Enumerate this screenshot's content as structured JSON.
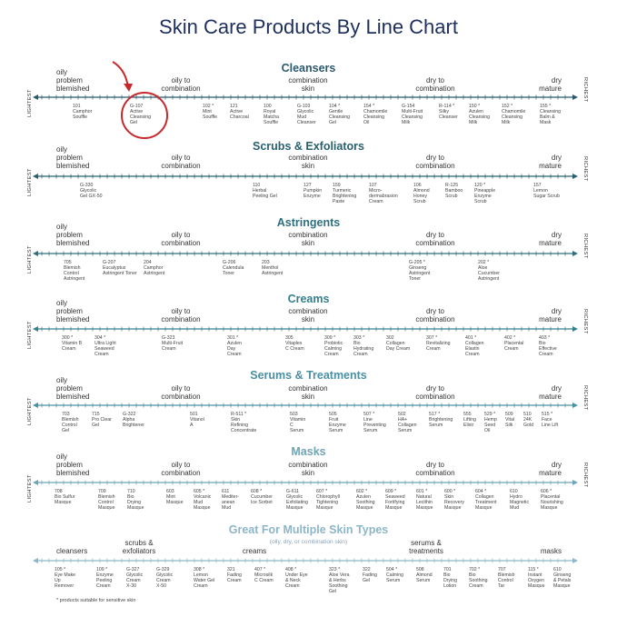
{
  "title": "Skin Care Products By Line Chart",
  "axis_ends": {
    "left": "LIGHTEST",
    "right": "RICHEST"
  },
  "skin_types": {
    "oily": "oily\nproblem\nblemished",
    "oily_combo": "oily to\ncombination",
    "combo": "combination\nskin",
    "dry_combo": "dry to\ncombination",
    "dry": "dry\nmature"
  },
  "colors": {
    "title": "#1d2f5c",
    "cleansers": "#2b5a6e",
    "scrubs": "#27606f",
    "astringents": "#2e6f7d",
    "creams": "#357f8c",
    "serums": "#4a90a3",
    "masks": "#6ea4b8",
    "multi": "#8db6c9",
    "highlight": "#c6292b"
  },
  "sections": [
    {
      "key": "cleansers",
      "title": "Cleansers",
      "color": "#2b5a6e",
      "products": [
        "101\nCamphor\nSouffle",
        "G-107\nActive\nCleansing\nGel",
        "102 *\nMint\nSouffle",
        "121\nActive\nCharcoal",
        "100\nRoyal\nMatcha\nSouffle",
        "G-103\nGlycolic\nMud\nCleanser",
        "104 *\nGentle\nCleansing\nGel",
        "154 *\nChamomile\nCleansing\nOil",
        "G-154\nMulti-Fruit\nCleansing\nMilk",
        "R-114 *\nSilky\nCleanser",
        "150 *\nAzulen\nCleansing\nMilk",
        "152 *\nChamomile\nCleansing\nMilk",
        "155 *\nCleansing\nBalm &\nMask"
      ]
    },
    {
      "key": "scrubs",
      "title": "Scrubs & Exfoliators",
      "color": "#27606f",
      "products": [
        "G-330\nGlycolic\nGel GX-50",
        "110\nHerbal\nPeeling Gel",
        "127\nPumpkin\nEnzyme",
        "159\nTurmeric\nBrightening\nPaste",
        "107\nMicro-\ndermabrasion\nCream",
        "106\nAlmond\nHoney\nScrub",
        "R-125\nBamboo\nScrub",
        "120 *\nPineapple\nEnzyme\nScrub",
        "157\nLemon\nSugar Scrub"
      ]
    },
    {
      "key": "astringents",
      "title": "Astringents",
      "color": "#2e6f7d",
      "products": [
        "705\nBlemish\nControl\nAstringent",
        "G-207\nEucalyptus\nAstringent Toner",
        "204\nCamphor\nAstringent",
        "G-206\nCalendula\nToner",
        "203\nMenthol\nAstringent",
        "G-205 *\nGinseng\nAstringent\nToner",
        "202 *\nAloe\nCucumber\nAstringent"
      ]
    },
    {
      "key": "creams",
      "title": "Creams",
      "color": "#357f8c",
      "products": [
        "300 *\nVitamin B\nCream",
        "304 *\nUltra Light\nSeaweed\nCream",
        "G-323\nMulti-Fruit\nCream",
        "301 *\nAzulen\nDay\nCream",
        "305\nVitaplex\nC Cream",
        "309 *\nProbiotic\nCalming\nCream",
        "303 *\nBio\nHydrating\nCream",
        "302\nCollagen\nDay Cream",
        "307 *\nRevitalizing\nCream",
        "401 *\nCollagen\nElastin\nCream",
        "402 *\nPlacental\nCream",
        "403 *\nBio\nEffective\nCream"
      ]
    },
    {
      "key": "serums",
      "title": "Serums & Treatments",
      "color": "#4a90a3",
      "products": [
        "703\nBlemish\nControl\nGel",
        "715\nPro Clear\nGel",
        "G-322\nAlpha\nBrightener",
        "501\nVitanol\nA",
        "R-511 *\nSkin\nRefining\nConcentrate",
        "503\nVitamin\nC\nSerum",
        "505\nFruit\nEnzyme\nSerum",
        "507 *\nLine\nPreventing\nSerum",
        "502\nHA+\nCollagen\nSerum",
        "517 *\nBrightening\nSerum",
        "555\nLifting\nElixir",
        "529 *\nHemp\nSeed\nOil",
        "509\nVital\nSilk",
        "510\n24K\nGold",
        "515 *\nFace\nLine Lift"
      ]
    },
    {
      "key": "masks",
      "title": "Masks",
      "color": "#6ea4b8",
      "products": [
        "708\nBio Sulfur\nMasque",
        "709\nBlemish\nControl\nMasque",
        "710\nBio\nDrying\nMasque",
        "603\nMint\nMasque",
        "605 *\nVolcanic\nMud\nMasque",
        "611\nMediter-\nanean\nMud",
        "608 *\nCucumber\nIce Sorbet",
        "G-611\nGlycolic\nExfoliating\nMasque",
        "607 *\nChlorophyll\nTightening\nMasque",
        "602 *\nAzulen\nSoothing\nMasque",
        "609 *\nSeaweed\nFortifying\nMasque",
        "601 *\nNatural\nLecithin\nMasque",
        "600 *\nSkin\nRecovery\nMasque",
        "604 *\nCollagen\nTreatment\nMasque",
        "610\nHydro\nMagnetic\nMud",
        "606 *\nPlacental\nNourishing\nMasque"
      ]
    }
  ],
  "multi": {
    "title": "Great For Multiple Skin Types",
    "subtitle": "(oily, dry, or combination skin)",
    "labels": {
      "cleansers": "cleansers",
      "scrubs": "scrubs &\nexfoliators",
      "creams": "creams",
      "serums": "serums &\ntreatments",
      "masks": "masks"
    },
    "products": [
      "105 *\nEye Make\nUp\nRemover",
      "109 *\nEnzyme\nPeeling\nCream",
      "G-327\nGlycolic\nCream\nX-30",
      "G-329\nGlycolic\nCream\nX-50",
      "308 *\nLemon\nWater Gel\nCream",
      "321\nFading\nCream",
      "407 *\nMicrosilk\nC Cream",
      "408 *\nUnder Eye\n& Neck\nCream",
      "323 *\nAloe Vera\n& Herbs\nSoothing\nGel",
      "322\nFading\nGel",
      "504 *\nCalming\nSerum",
      "508\nAlmond\nSerum",
      "701\nBio\nDrying\nLotion",
      "702 *\nBio\nSoothing\nCream",
      "707\nBlemish\nControl\nTar",
      "115 *\nInstant\nOxygen\nMasque",
      "610\nGinseng\n& Petals\nMasque"
    ]
  },
  "footnote": "* products suitable for sensitive skin"
}
